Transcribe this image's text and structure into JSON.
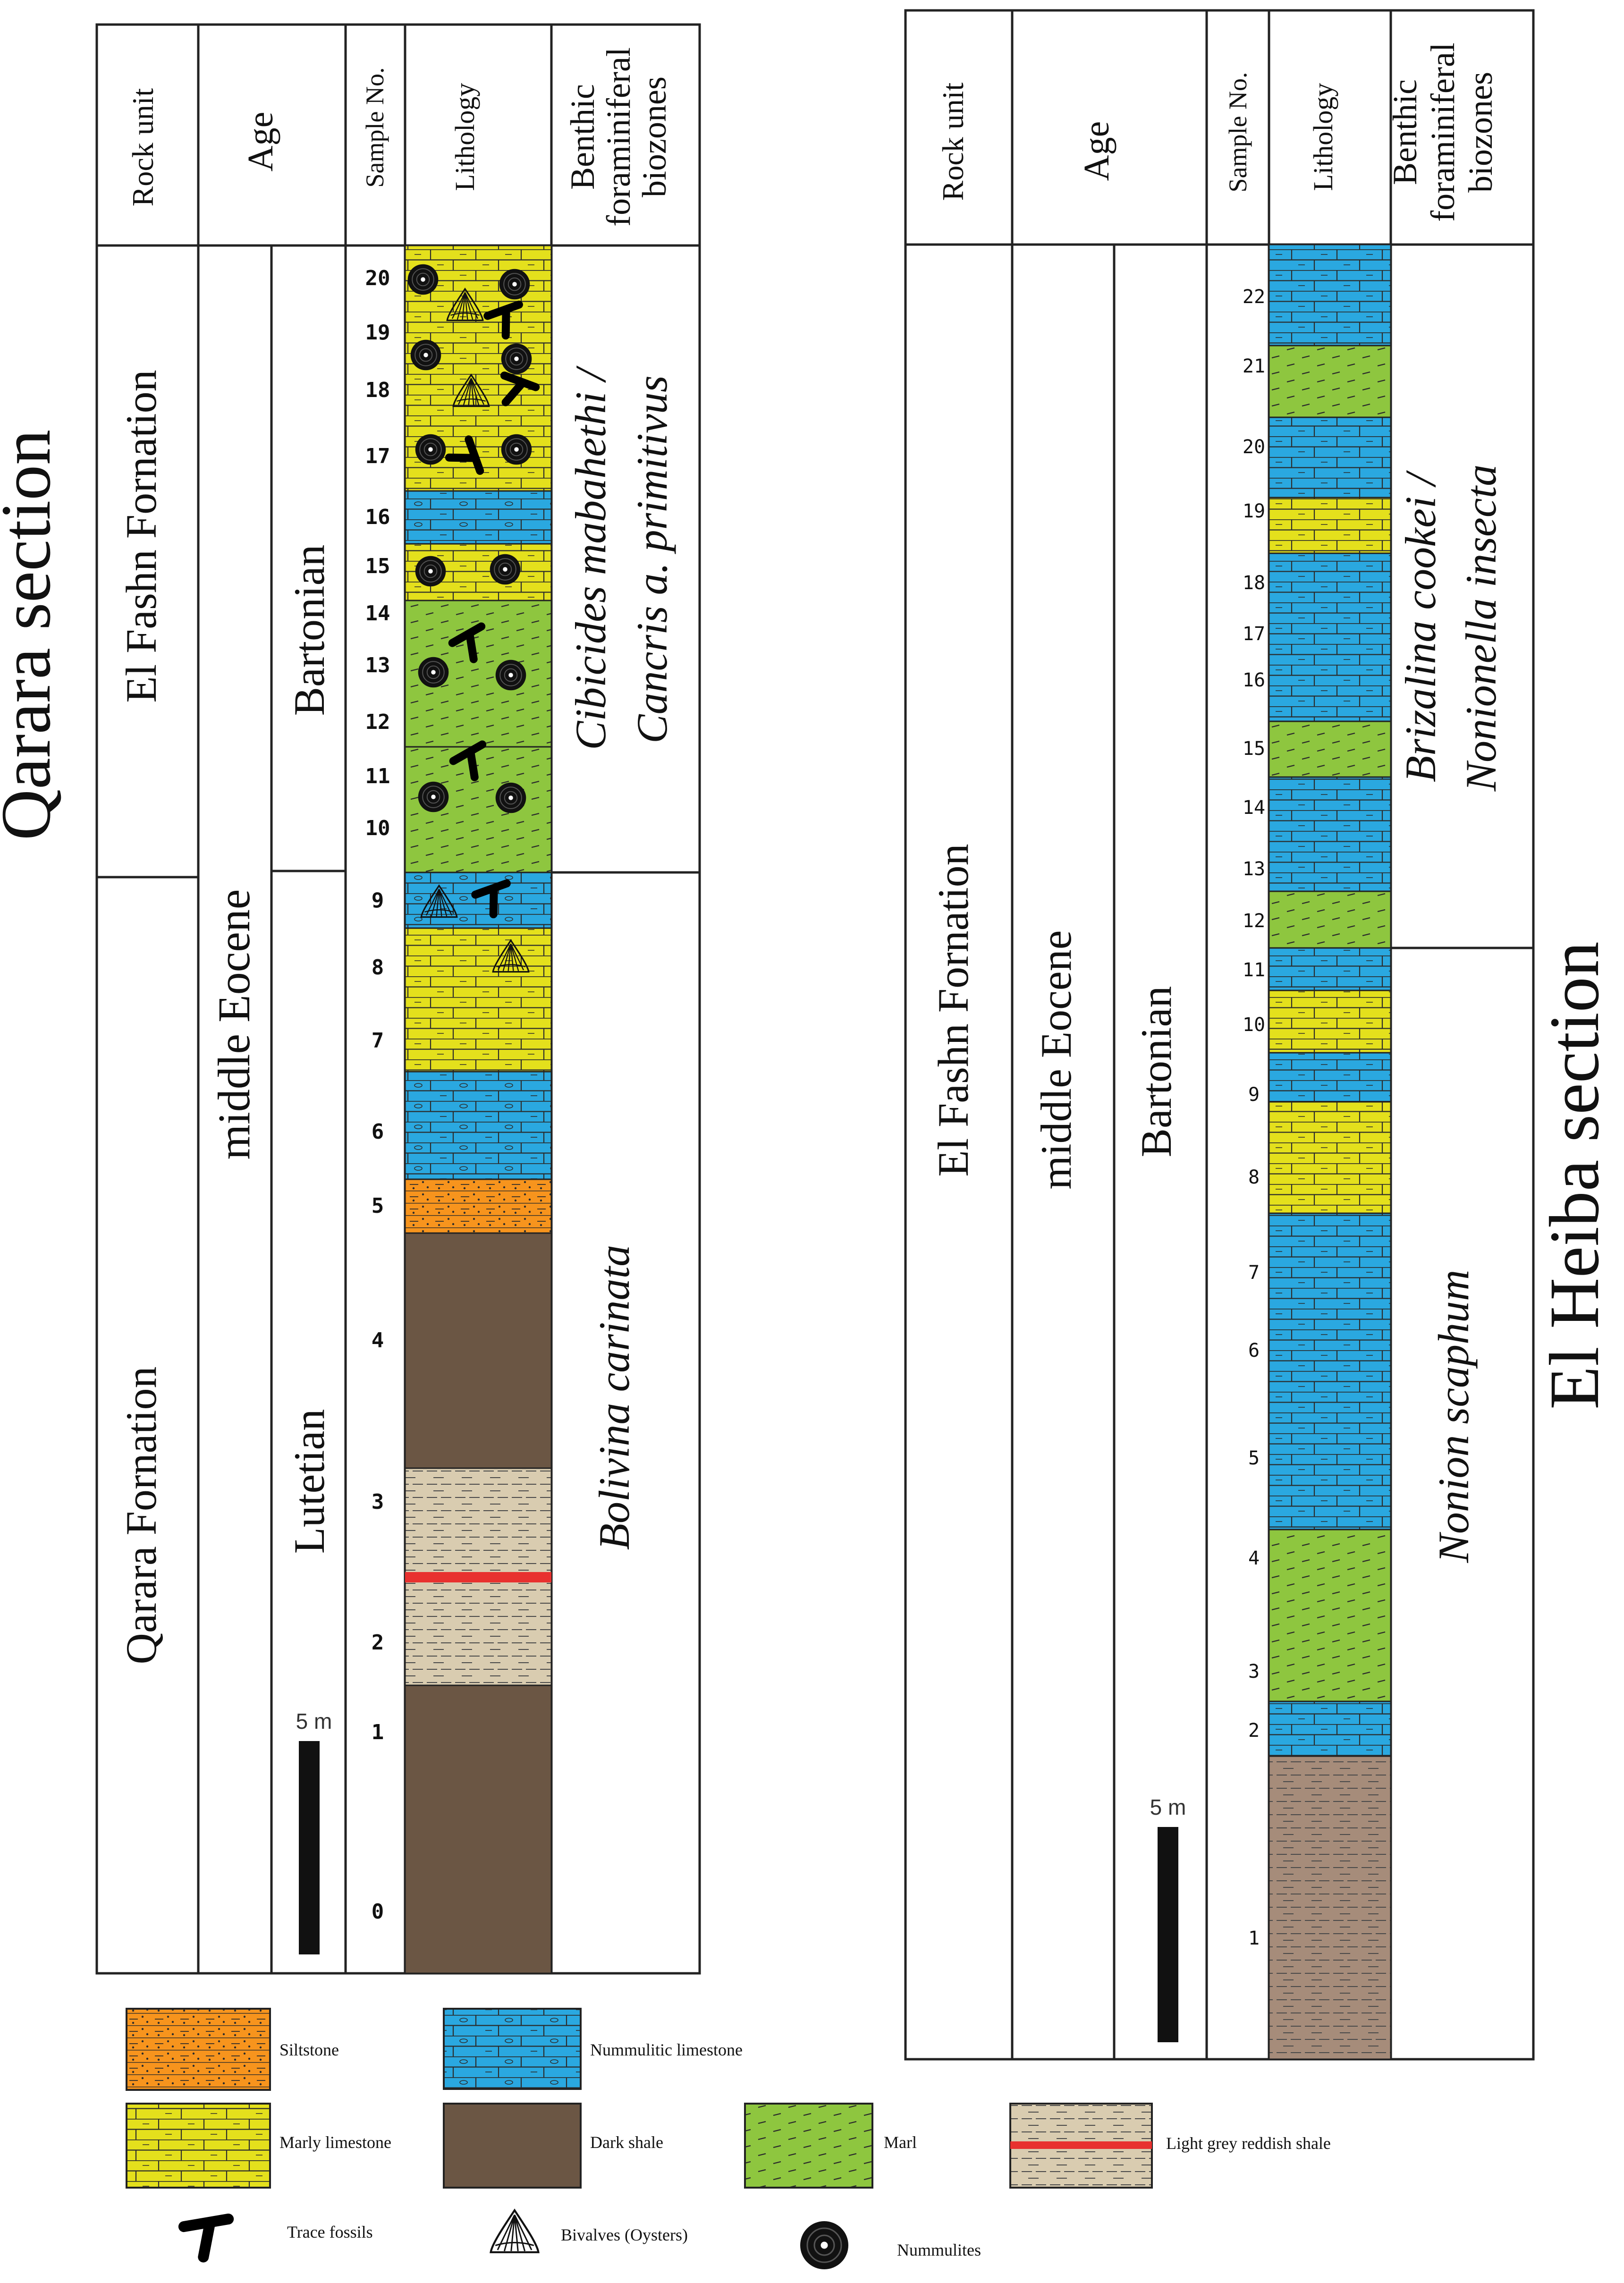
{
  "colors": {
    "nummulitic_limestone": "#2aa8e0",
    "marly_limestone": "#e4e01c",
    "marl": "#8ec63f",
    "siltstone": "#f7941d",
    "dark_shale": "#6b5644",
    "light_grey_shale": "#d9ccb0",
    "reddish_band": "#e8312f",
    "heiba_shale": "#a68c7a",
    "line": "#222222"
  },
  "qarara": {
    "title": "Qarara  section",
    "headers": {
      "rock_unit": "Rock unit",
      "age": "Age",
      "sample": "Sample No.",
      "lithology": "Lithology",
      "biozone_l1": "Benthic",
      "biozone_l2": "foraminiferal",
      "biozone_l3": "biozones"
    },
    "formation_upper": "El Fashn Fornation",
    "formation_lower": "Qarara  Fornation",
    "age": "middle Eocene",
    "stage_upper": "Bartonian",
    "stage_lower": "Lutetian",
    "biozone_upper_l1": "Cibicides mabahethi /",
    "biozone_upper_l2": "Cancris a. primitivus",
    "biozone_lower": "Bolivina carinata",
    "scale": "5 m",
    "samples": [
      "20",
      "19",
      "18",
      "17",
      "16",
      "15",
      "14",
      "13",
      "12",
      "11",
      "10",
      "9",
      "8",
      "7",
      "6",
      "5",
      "4",
      "3",
      "2",
      "1",
      "0"
    ]
  },
  "heiba": {
    "title": "El Heiba  section",
    "headers": {
      "rock_unit": "Rock unit",
      "age": "Age",
      "sample": "Sample No.",
      "lithology": "Lithology",
      "biozone_l1": "Benthic",
      "biozone_l2": "foraminiferal",
      "biozone_l3": "biozones"
    },
    "formation": "El Fashn Fornation",
    "age": "middle Eocene",
    "stage": "Bartonian",
    "biozone_upper_l1": "Brizalina cookei /",
    "biozone_upper_l2": "Nonionella insecta",
    "biozone_lower": "Nonion scaphum",
    "scale": "5 m",
    "samples": [
      "22",
      "21",
      "20",
      "19",
      "18",
      "17",
      "16",
      "15",
      "14",
      "13",
      "12",
      "11",
      "10",
      "9",
      "8",
      "7",
      "6",
      "5",
      "4",
      "3",
      "2",
      "1"
    ]
  },
  "legend": {
    "siltstone": "Siltstone",
    "nummulitic_limestone": "Nummulitic limestone",
    "marly_limestone": "Marly limestone",
    "dark_shale": "Dark shale",
    "marl": "Marl",
    "light_grey_shale": "Light grey reddish shale",
    "trace_fossils": "Trace fossils",
    "bivalves": "Bivalves (Oysters)",
    "nummulites": "Nummulites"
  }
}
